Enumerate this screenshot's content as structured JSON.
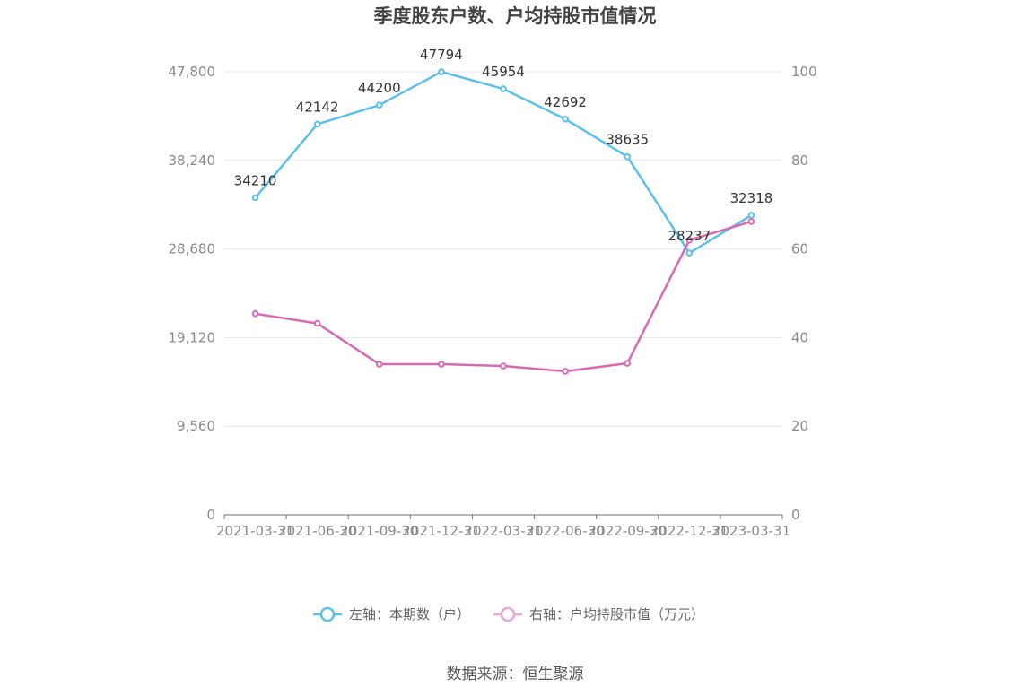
{
  "chart_data": {
    "type": "line",
    "title": "季度股东户数、户均持股市值情况",
    "categories": [
      "2021-03-31",
      "2021-06-30",
      "2021-09-30",
      "2021-12-31",
      "2022-03-31",
      "2022-06-30",
      "2022-09-30",
      "2022-12-31",
      "2023-03-31"
    ],
    "y_left": {
      "ticks": [
        "0",
        "9,560",
        "19,120",
        "28,680",
        "38,240",
        "47,800"
      ],
      "ylim": [
        0,
        47800
      ]
    },
    "y_right": {
      "ticks": [
        "0",
        "20",
        "40",
        "60",
        "80",
        "100"
      ],
      "ylim": [
        0,
        100
      ]
    },
    "grid": true,
    "legend_position": "bottom",
    "series": [
      {
        "name": "左轴：本期数（户）",
        "axis": "left",
        "color": "#5bc0eb",
        "values": [
          34210,
          42142,
          44200,
          47794,
          45954,
          42692,
          38635,
          28237,
          32318
        ],
        "labels": [
          "34210",
          "42142",
          "44200",
          "47794",
          "45954",
          "42692",
          "38635",
          "28237",
          "32318"
        ]
      },
      {
        "name": "右轴：户均持股市值（万元）",
        "axis": "right",
        "color": "#d66bb4",
        "values": [
          45.4,
          43.2,
          34.0,
          34.0,
          33.6,
          32.4,
          34.2,
          62.0,
          66.2
        ]
      }
    ],
    "source": "数据来源：恒生聚源"
  }
}
